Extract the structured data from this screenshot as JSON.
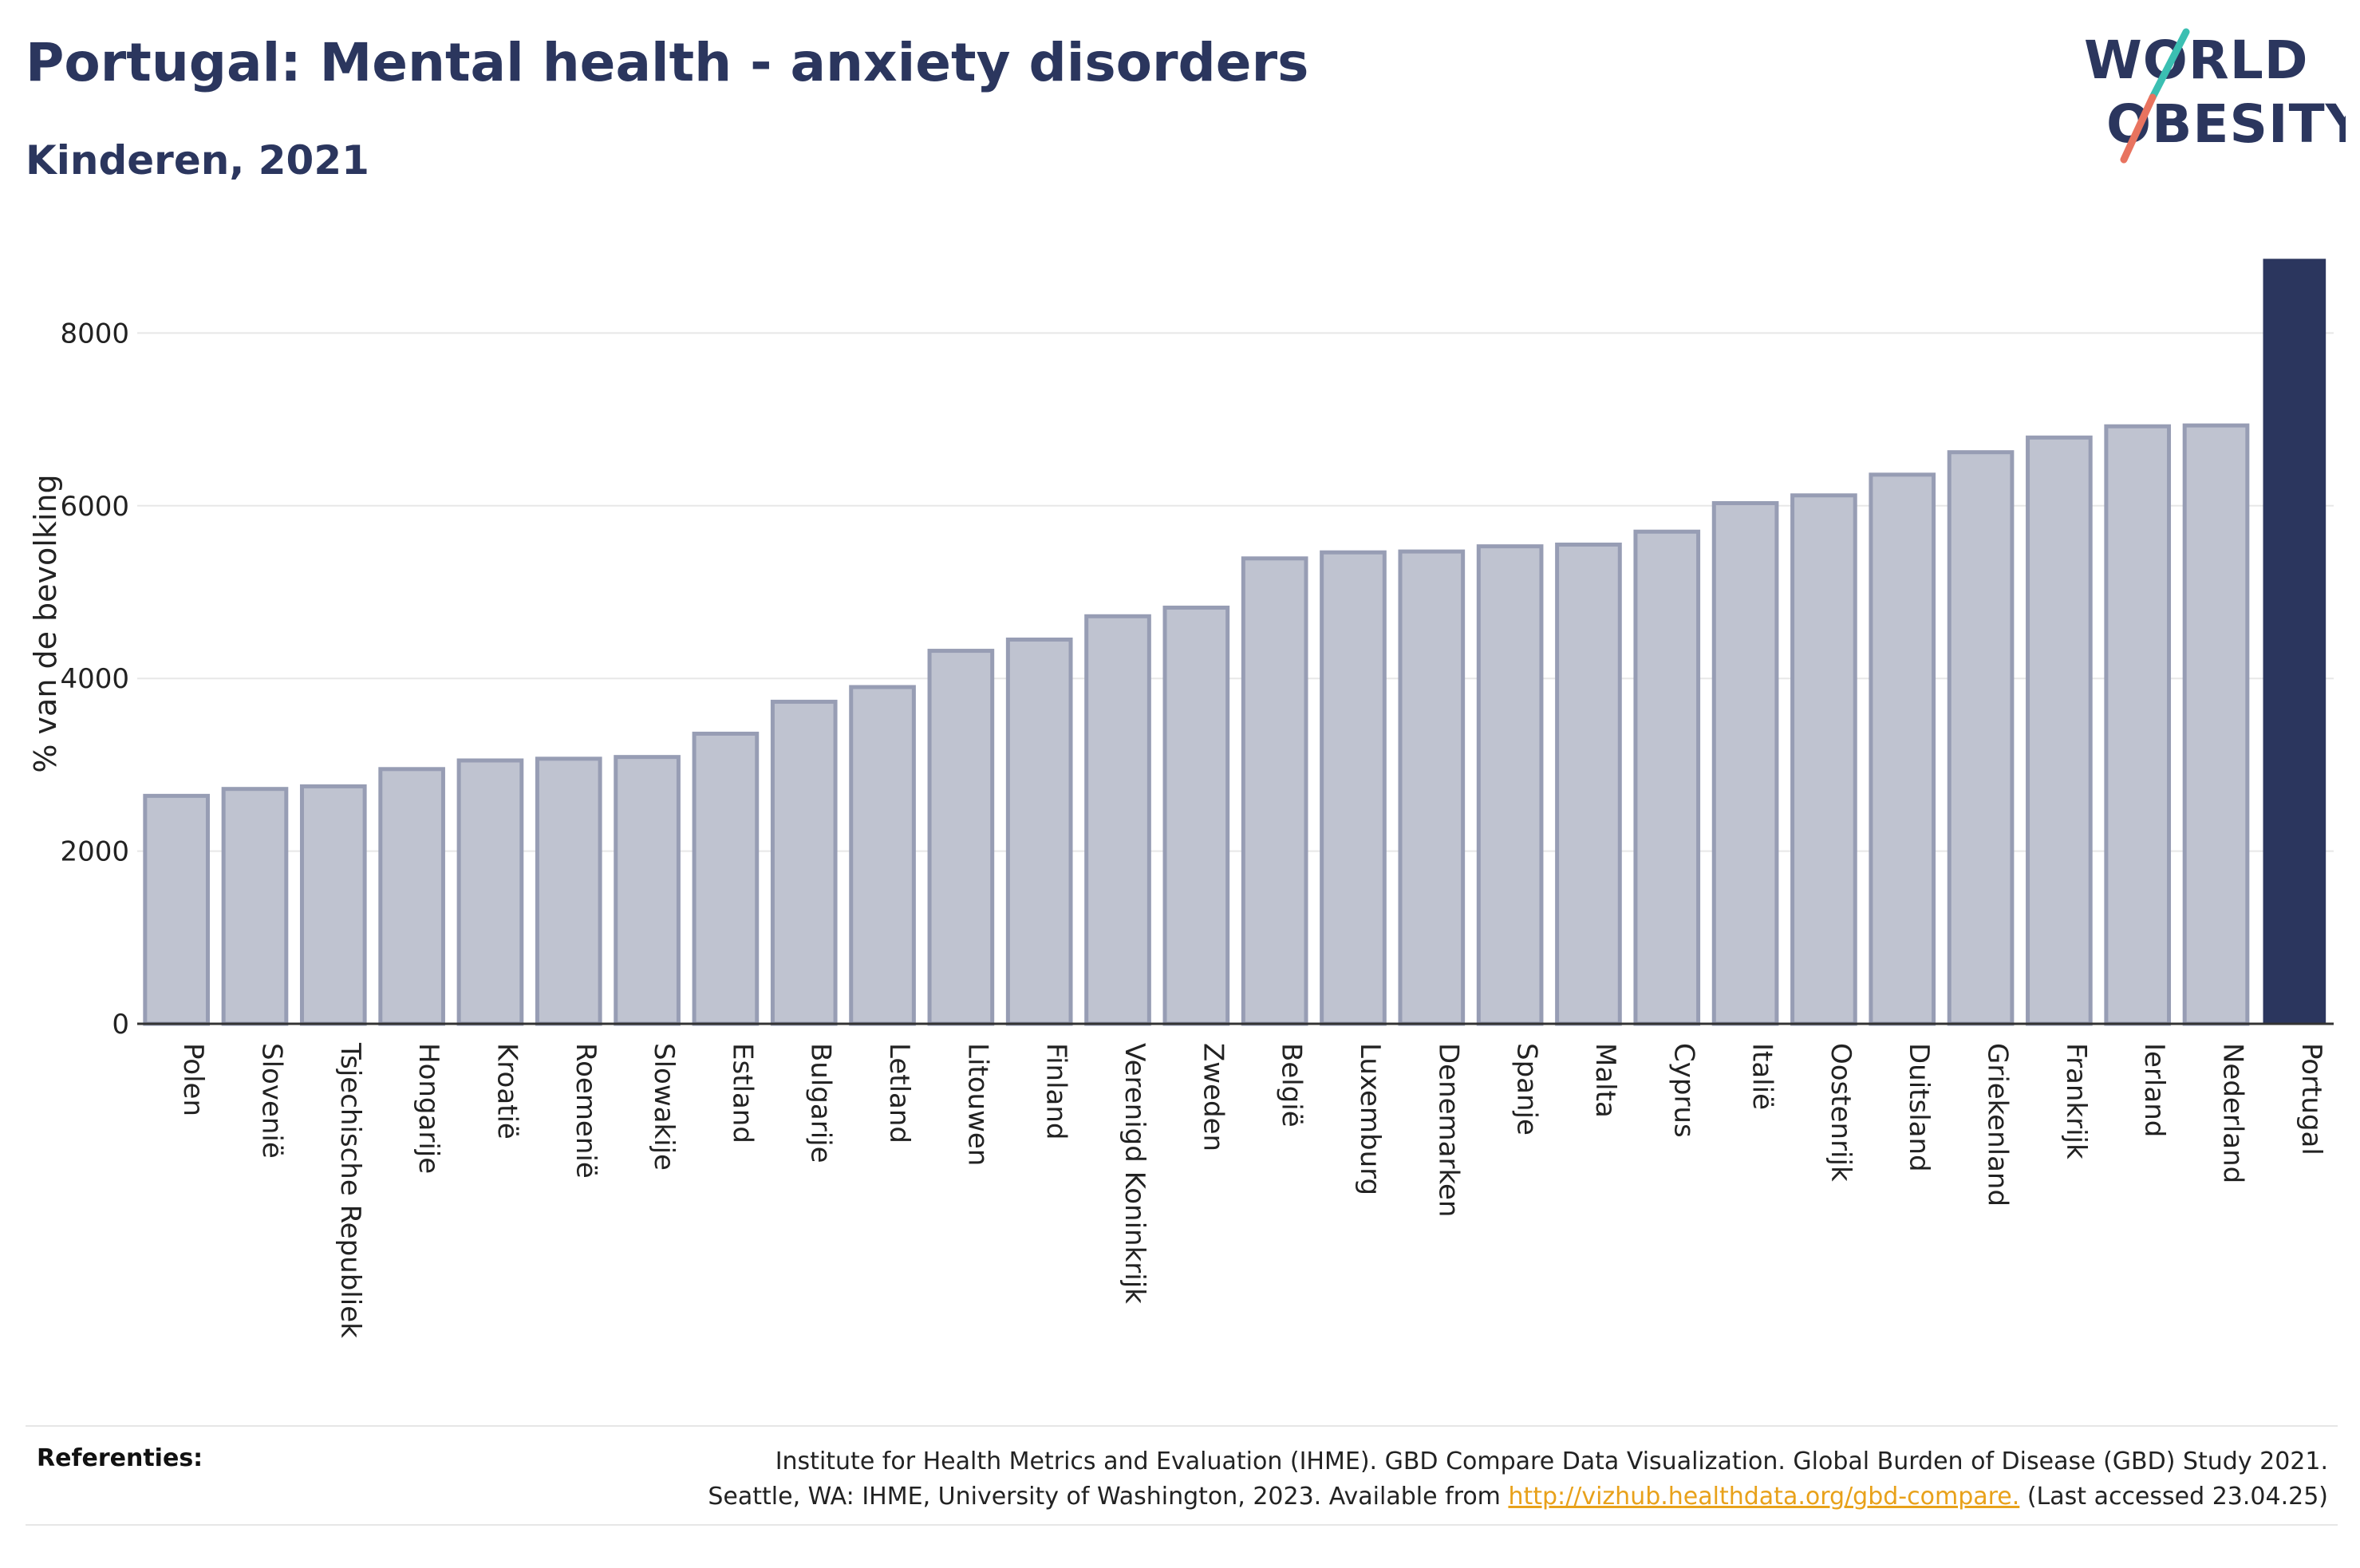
{
  "title": "Portugal: Mental health - anxiety disorders",
  "subtitle": "Kinderen, 2021",
  "logo": {
    "line1": "WORLD",
    "line2": "OBESITY"
  },
  "references": {
    "label": "Referenties:",
    "line1": "Institute for Health Metrics and Evaluation (IHME). GBD Compare Data Visualization. Global Burden of Disease (GBD) Study 2021.",
    "line2_prefix": "Seattle, WA: IHME, University of Washington, 2023. Available from ",
    "link": "http://vizhub.healthdata.org/gbd-compare.",
    "line2_suffix": " (Last accessed 23.04.25)"
  },
  "colors": {
    "title": "#2b365e",
    "bar": "#bfc3d0",
    "bar_border": "#979db4",
    "highlight": "#2b365e",
    "grid": "#e8e8e8",
    "link": "#e8a11a"
  },
  "chart_data": {
    "type": "bar",
    "ylabel": "% van de bevolking",
    "ylim": [
      0,
      8900
    ],
    "yticks": [
      0,
      2000,
      4000,
      6000,
      8000
    ],
    "highlight": "Portugal",
    "categories": [
      "Polen",
      "Slovenië",
      "Tsjechische Republiek",
      "Hongarije",
      "Kroatië",
      "Roemenië",
      "Slowakije",
      "Estland",
      "Bulgarije",
      "Letland",
      "Litouwen",
      "Finland",
      "Verenigd Koninkrijk",
      "Zweden",
      "België",
      "Luxemburg",
      "Denemarken",
      "Spanje",
      "Malta",
      "Cyprus",
      "Italië",
      "Oostenrijk",
      "Duitsland",
      "Griekenland",
      "Frankrijk",
      "Ierland",
      "Nederland",
      "Portugal"
    ],
    "values": [
      2640,
      2720,
      2750,
      2950,
      3050,
      3070,
      3090,
      3360,
      3730,
      3900,
      4320,
      4450,
      4720,
      4820,
      5390,
      5460,
      5470,
      5530,
      5550,
      5700,
      6030,
      6120,
      6360,
      6620,
      6790,
      6920,
      6930,
      8860
    ]
  }
}
